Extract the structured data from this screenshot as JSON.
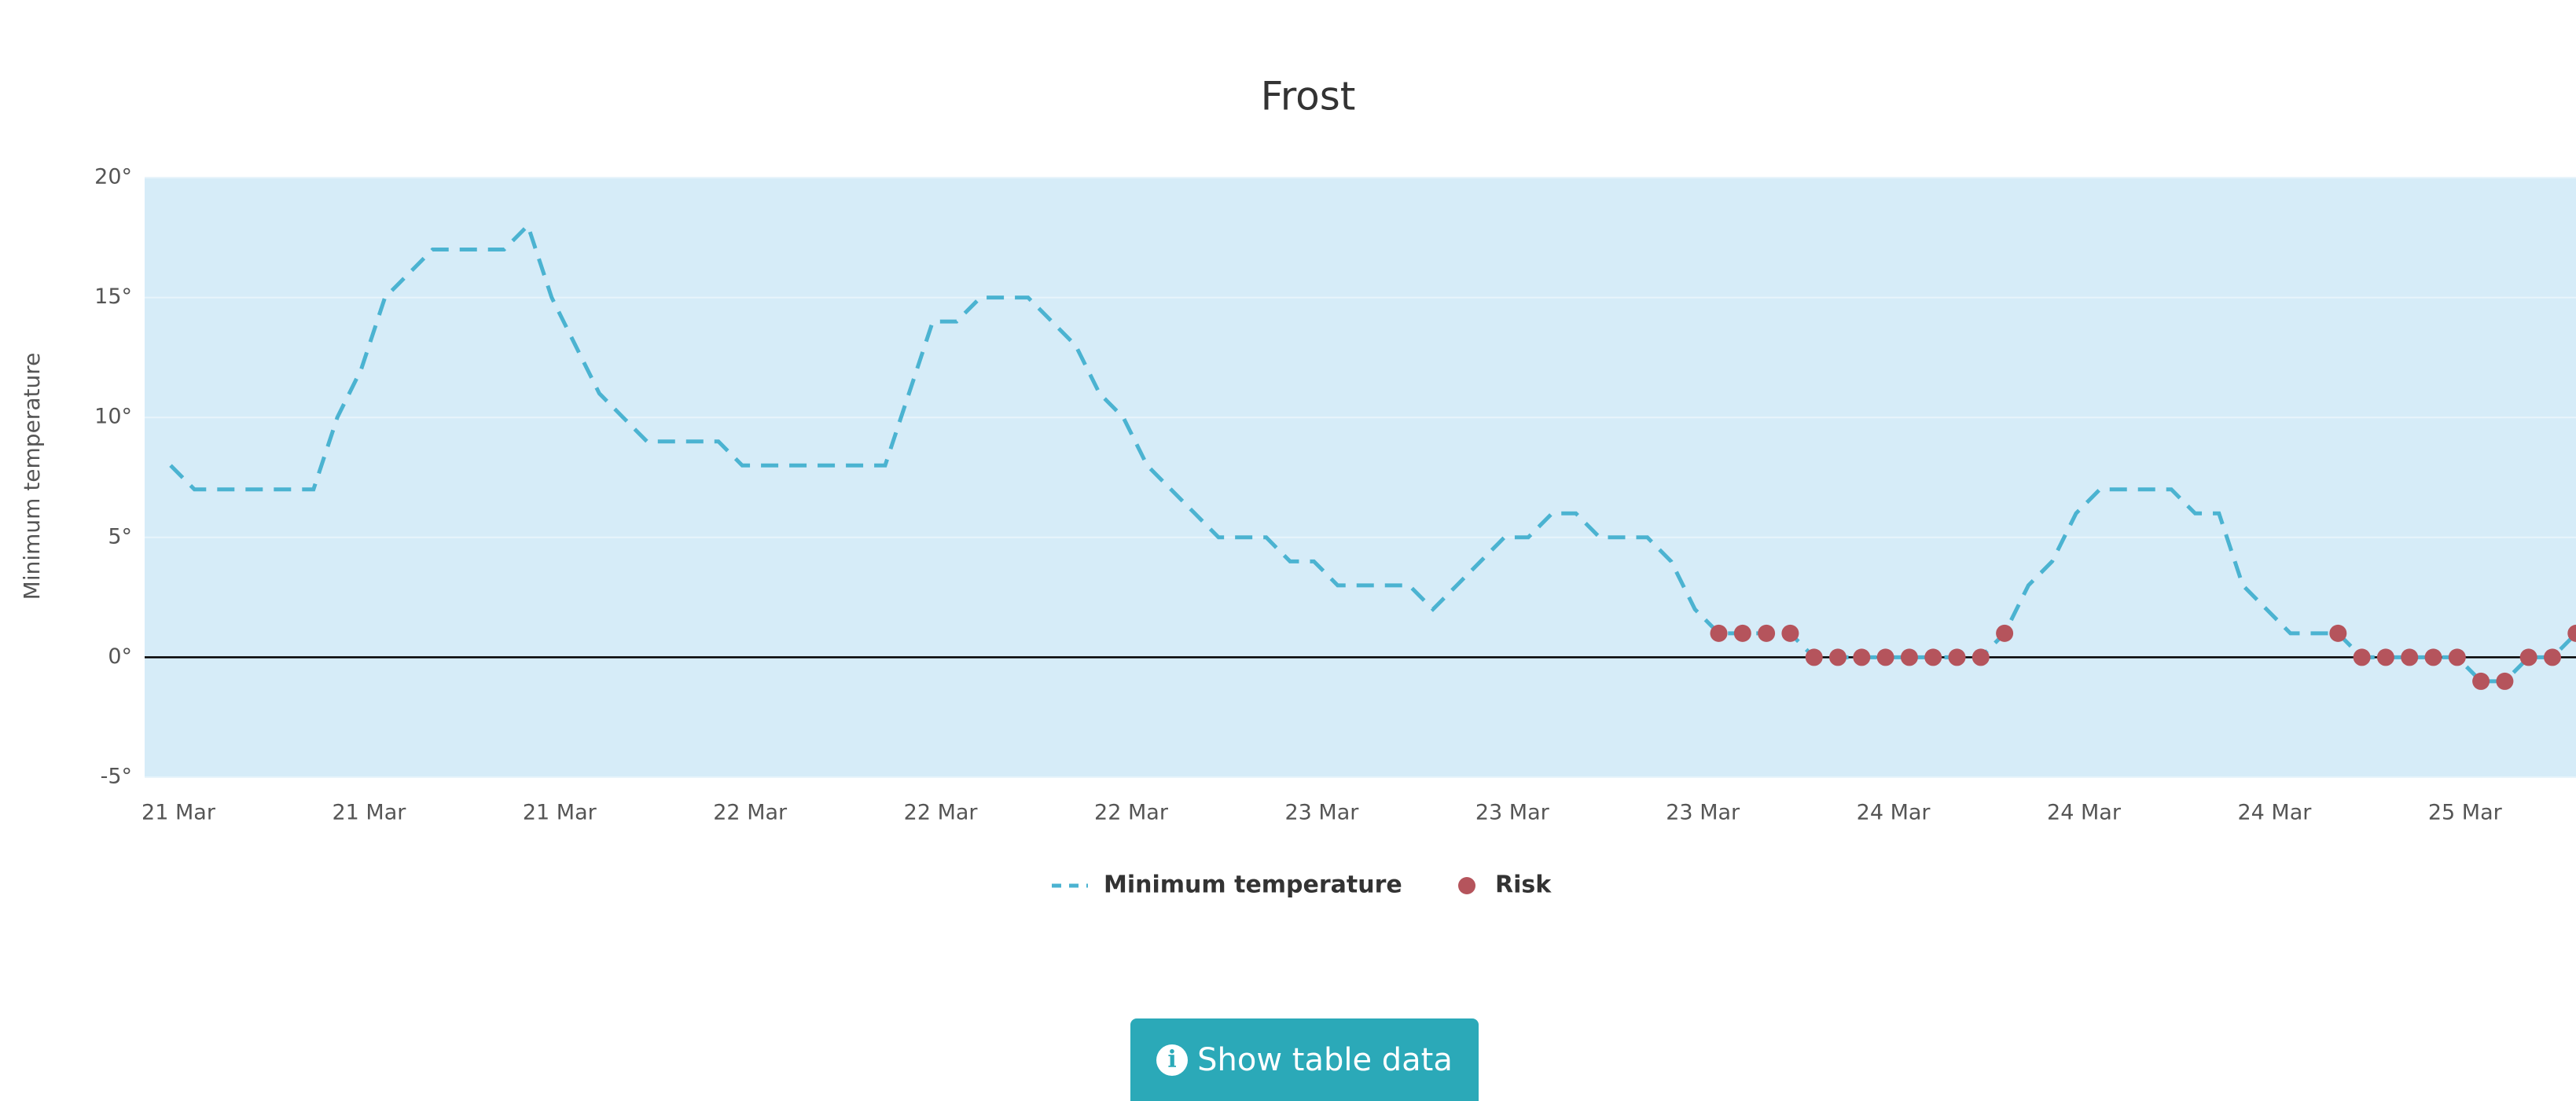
{
  "chart_data": {
    "type": "line",
    "title": "Frost",
    "y_label": "Minimum temperature",
    "categories": [
      "21 Mar",
      null,
      null,
      null,
      null,
      null,
      null,
      null,
      "21 Mar",
      null,
      null,
      null,
      null,
      null,
      null,
      null,
      "21 Mar",
      null,
      null,
      null,
      null,
      null,
      null,
      null,
      "22 Mar",
      null,
      null,
      null,
      null,
      null,
      null,
      null,
      "22 Mar",
      null,
      null,
      null,
      null,
      null,
      null,
      null,
      "22 Mar",
      null,
      null,
      null,
      null,
      null,
      null,
      null,
      "23 Mar",
      null,
      null,
      null,
      null,
      null,
      null,
      null,
      "23 Mar",
      null,
      null,
      null,
      null,
      null,
      null,
      null,
      "23 Mar",
      null,
      null,
      null,
      null,
      null,
      null,
      null,
      "24 Mar",
      null,
      null,
      null,
      null,
      null,
      null,
      null,
      "24 Mar",
      null,
      null,
      null,
      null,
      null,
      null,
      null,
      "24 Mar",
      null,
      null,
      null,
      null,
      null,
      null,
      null,
      "25 Mar",
      null,
      null,
      null,
      null,
      null
    ],
    "series": [
      {
        "name": "Minimum temperature",
        "color": "#4bb3d1",
        "style": "dashed",
        "values": [
          8,
          7,
          7,
          7,
          7,
          7,
          7,
          10,
          12,
          15,
          16,
          17,
          17,
          17,
          17,
          18,
          15,
          13,
          11,
          10,
          9,
          9,
          9,
          9,
          8,
          8,
          8,
          8,
          8,
          8,
          8,
          11,
          14,
          14,
          15,
          15,
          15,
          14,
          13,
          11,
          10,
          8,
          7,
          6,
          5,
          5,
          5,
          4,
          4,
          3,
          3,
          3,
          3,
          2,
          3,
          4,
          5,
          5,
          6,
          6,
          5,
          5,
          5,
          4,
          2,
          1,
          1,
          1,
          1,
          0,
          0,
          0,
          0,
          0,
          0,
          0,
          0,
          1,
          3,
          4,
          6,
          7,
          7,
          7,
          7,
          6,
          6,
          3,
          2,
          1,
          1,
          1,
          0,
          0,
          0,
          0,
          0,
          -1,
          -1,
          0,
          0,
          1
        ]
      },
      {
        "name": "Risk",
        "color": "#b5545c",
        "style": "markers",
        "values": [
          null,
          null,
          null,
          null,
          null,
          null,
          null,
          null,
          null,
          null,
          null,
          null,
          null,
          null,
          null,
          null,
          null,
          null,
          null,
          null,
          null,
          null,
          null,
          null,
          null,
          null,
          null,
          null,
          null,
          null,
          null,
          null,
          null,
          null,
          null,
          null,
          null,
          null,
          null,
          null,
          null,
          null,
          null,
          null,
          null,
          null,
          null,
          null,
          null,
          null,
          null,
          null,
          null,
          null,
          null,
          null,
          null,
          null,
          null,
          null,
          null,
          null,
          null,
          null,
          null,
          1,
          1,
          1,
          1,
          0,
          0,
          0,
          0,
          0,
          0,
          0,
          0,
          1,
          null,
          null,
          null,
          null,
          null,
          null,
          null,
          null,
          null,
          null,
          null,
          null,
          null,
          1,
          0,
          0,
          0,
          0,
          0,
          -1,
          -1,
          0,
          0,
          1
        ]
      }
    ],
    "ylim": [
      -5,
      20
    ],
    "yticks": [
      {
        "value": -5,
        "label": "-5°"
      },
      {
        "value": 0,
        "label": "0°"
      },
      {
        "value": 5,
        "label": "5°"
      },
      {
        "value": 10,
        "label": "10°"
      },
      {
        "value": 15,
        "label": "15°"
      },
      {
        "value": 20,
        "label": "20°"
      }
    ],
    "grid": true,
    "legend": "bottom"
  },
  "button": {
    "label": "Show table data"
  }
}
